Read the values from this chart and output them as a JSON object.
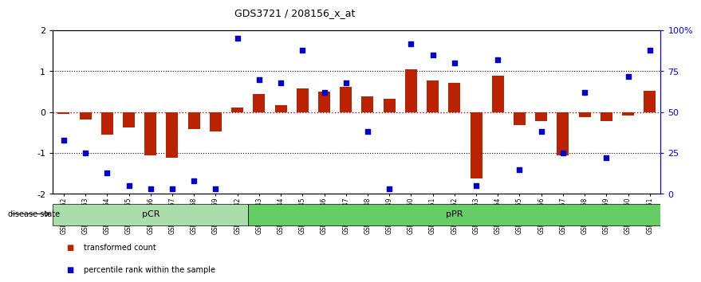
{
  "title": "GDS3721 / 208156_x_at",
  "samples": [
    "GSM559062",
    "GSM559063",
    "GSM559064",
    "GSM559065",
    "GSM559066",
    "GSM559067",
    "GSM559068",
    "GSM559069",
    "GSM559042",
    "GSM559043",
    "GSM559044",
    "GSM559045",
    "GSM559046",
    "GSM559047",
    "GSM559048",
    "GSM559049",
    "GSM559050",
    "GSM559051",
    "GSM559052",
    "GSM559053",
    "GSM559054",
    "GSM559055",
    "GSM559056",
    "GSM559057",
    "GSM559058",
    "GSM559059",
    "GSM559060",
    "GSM559061"
  ],
  "bar_values": [
    -0.04,
    -0.18,
    -0.55,
    -0.38,
    -1.05,
    -1.12,
    -0.42,
    -0.48,
    0.12,
    0.45,
    0.18,
    0.58,
    0.5,
    0.62,
    0.38,
    0.32,
    1.05,
    0.78,
    0.72,
    -1.62,
    0.9,
    -0.32,
    -0.22,
    -1.05,
    -0.12,
    -0.22,
    -0.08,
    0.52
  ],
  "percentile_values": [
    33,
    25,
    13,
    5,
    3,
    3,
    8,
    3,
    95,
    70,
    68,
    88,
    62,
    68,
    38,
    3,
    92,
    85,
    80,
    5,
    82,
    15,
    38,
    25,
    62,
    22,
    72,
    88
  ],
  "pCR_count": 9,
  "pPR_count": 19,
  "bar_color": "#bb2200",
  "dot_color": "#0000cc",
  "zero_line_color": "#cc0000",
  "dotted_line_color": "#000000",
  "ylim_left": [
    -2,
    2
  ],
  "ylim_right": [
    0,
    100
  ],
  "right_ticks": [
    0,
    25,
    50,
    75,
    100
  ],
  "right_tick_labels": [
    "0",
    "25",
    "50",
    "75",
    "100%"
  ],
  "left_ticks": [
    -2,
    -1,
    0,
    1,
    2
  ],
  "pCR_color": "#aaddaa",
  "pPR_color": "#66cc66",
  "legend_bar_label": "transformed count",
  "legend_dot_label": "percentile rank within the sample",
  "disease_state_label": "disease state",
  "bar_width": 0.55
}
